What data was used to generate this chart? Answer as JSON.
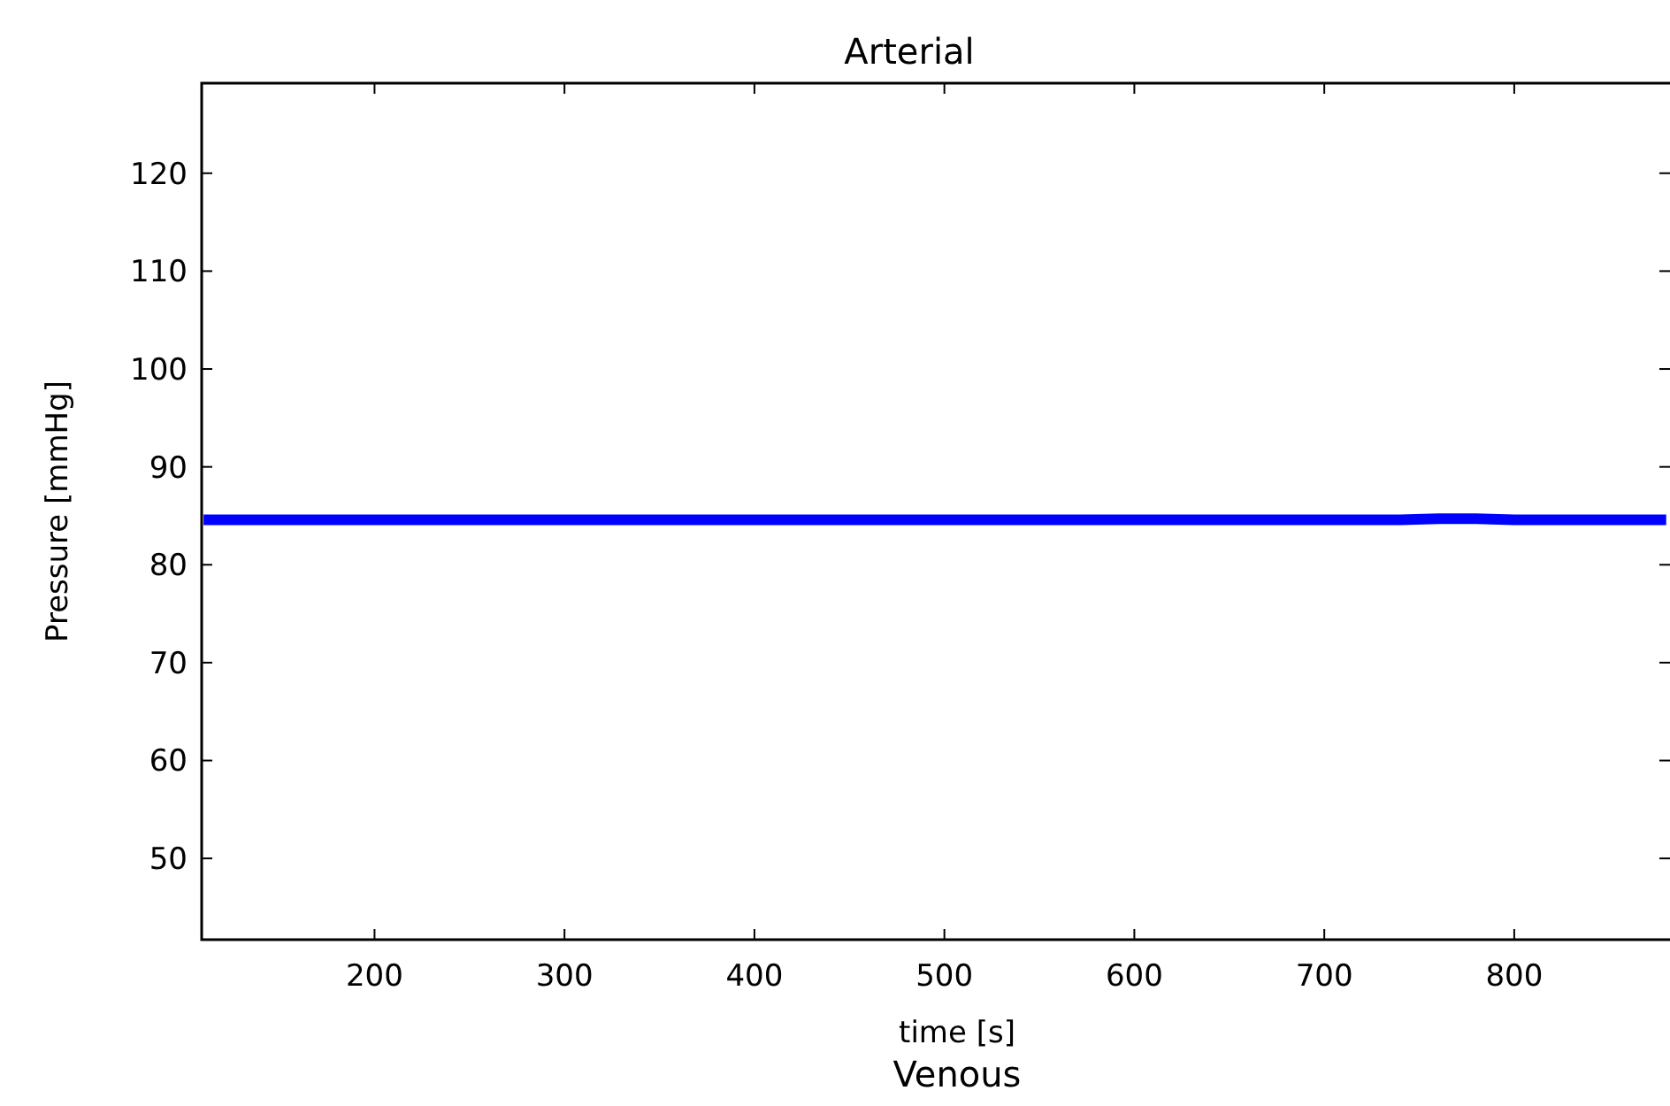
{
  "chart_data": {
    "type": "line",
    "title": "Arterial",
    "xlabel": "time [s]",
    "ylabel": "Pressure [mmHg]",
    "annotations": [
      "Venous"
    ],
    "x": [
      110,
      200,
      300,
      400,
      500,
      600,
      700,
      740,
      760,
      780,
      800,
      880
    ],
    "series": [
      {
        "color": "#0000ff",
        "values": [
          84.6,
          84.6,
          84.6,
          84.6,
          84.6,
          84.6,
          84.6,
          84.6,
          84.7,
          84.7,
          84.6,
          84.6
        ]
      }
    ],
    "xlim": [
      109,
      882
    ],
    "ylim": [
      41.7,
      129.2
    ],
    "xticks": [
      200,
      300,
      400,
      500,
      600,
      700,
      800
    ],
    "yticks": [
      50,
      60,
      70,
      80,
      90,
      100,
      110,
      120
    ],
    "grid": false
  }
}
